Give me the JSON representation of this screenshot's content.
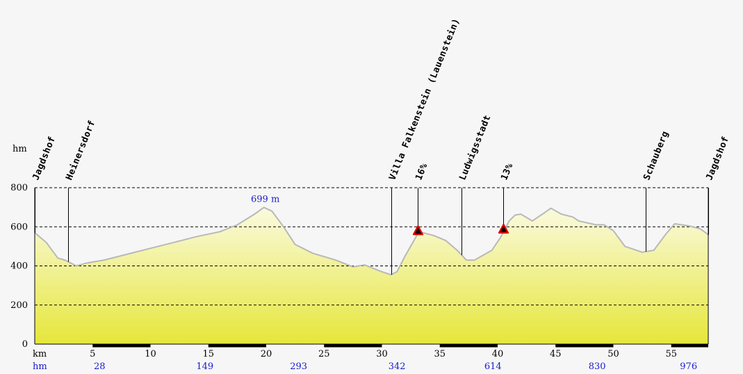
{
  "chart_data": {
    "type": "area",
    "title": "",
    "xlabel": "km",
    "ylabel": "hm",
    "xlim": [
      0,
      58.2
    ],
    "ylim": [
      0,
      800
    ],
    "grid": true,
    "x_ticks": [
      5,
      10,
      15,
      20,
      25,
      30,
      35,
      40,
      45,
      50,
      55
    ],
    "y_ticks": [
      0,
      200,
      400,
      600,
      800
    ],
    "cumulative_climb_label": "hm",
    "cumulative_climb": [
      {
        "x": 5.6,
        "label": "28"
      },
      {
        "x": 14.7,
        "label": "149"
      },
      {
        "x": 22.8,
        "label": "293"
      },
      {
        "x": 31.3,
        "label": "342"
      },
      {
        "x": 39.6,
        "label": "614"
      },
      {
        "x": 48.6,
        "label": "830"
      },
      {
        "x": 56.5,
        "label": "976"
      }
    ],
    "max_label": "699 m",
    "max_point": {
      "x": 19.8,
      "y": 699
    },
    "waypoints": [
      {
        "x": 0,
        "label": "Jagdshof",
        "kind": "place"
      },
      {
        "x": 2.9,
        "label": "Heinersdorf",
        "kind": "place"
      },
      {
        "x": 30.8,
        "label": "Villa Falkenstein (Lauenstein)",
        "kind": "place"
      },
      {
        "x": 33.1,
        "label": "16%",
        "kind": "gradient"
      },
      {
        "x": 36.9,
        "label": "Ludwigsstadt",
        "kind": "place"
      },
      {
        "x": 40.5,
        "label": "13%",
        "kind": "gradient"
      },
      {
        "x": 52.8,
        "label": "Schauberg",
        "kind": "place"
      },
      {
        "x": 58.2,
        "label": "Jagdshof",
        "kind": "place"
      }
    ],
    "profile": [
      [
        0,
        570
      ],
      [
        1,
        520
      ],
      [
        2,
        440
      ],
      [
        2.6,
        430
      ],
      [
        3.6,
        400
      ],
      [
        4.5,
        415
      ],
      [
        6,
        430
      ],
      [
        8,
        460
      ],
      [
        10,
        490
      ],
      [
        12,
        520
      ],
      [
        14,
        550
      ],
      [
        16,
        575
      ],
      [
        17.5,
        610
      ],
      [
        19,
        665
      ],
      [
        19.8,
        699
      ],
      [
        20.5,
        680
      ],
      [
        21.5,
        600
      ],
      [
        22.5,
        510
      ],
      [
        24,
        465
      ],
      [
        26,
        430
      ],
      [
        27.5,
        395
      ],
      [
        28.5,
        405
      ],
      [
        30,
        370
      ],
      [
        30.8,
        355
      ],
      [
        31.3,
        370
      ],
      [
        32,
        450
      ],
      [
        33.2,
        575
      ],
      [
        34.5,
        555
      ],
      [
        35.5,
        530
      ],
      [
        36.5,
        480
      ],
      [
        37.3,
        430
      ],
      [
        38,
        430
      ],
      [
        39.5,
        480
      ],
      [
        40.3,
        550
      ],
      [
        41,
        630
      ],
      [
        41.5,
        660
      ],
      [
        42,
        665
      ],
      [
        43,
        630
      ],
      [
        44,
        670
      ],
      [
        44.6,
        695
      ],
      [
        45.5,
        665
      ],
      [
        46.5,
        650
      ],
      [
        47,
        630
      ],
      [
        48.5,
        610
      ],
      [
        49.2,
        610
      ],
      [
        50,
        580
      ],
      [
        51,
        500
      ],
      [
        52.5,
        470
      ],
      [
        53.5,
        480
      ],
      [
        54.5,
        560
      ],
      [
        55.3,
        615
      ],
      [
        56.5,
        605
      ],
      [
        57.5,
        590
      ],
      [
        58.2,
        560
      ]
    ],
    "fill_gradient": [
      "#e6e63a",
      "#fafadf"
    ],
    "line_color": "#b8b8b8",
    "climb_color": "#1a1acc",
    "marker_color": "#e00000"
  }
}
